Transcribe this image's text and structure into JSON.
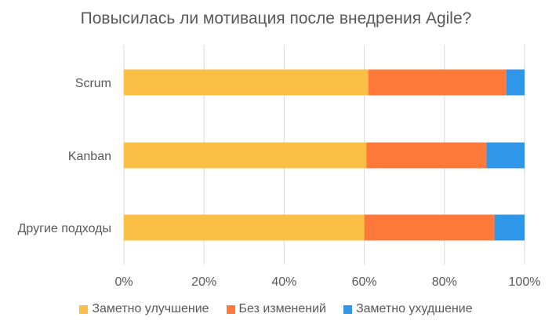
{
  "chart_data": {
    "type": "bar",
    "orientation": "horizontal",
    "stacked": "percent",
    "title": "Повысилась ли мотивация после внедрения Agile?",
    "categories": [
      "Scrum",
      "Kanban",
      "Другие подходы"
    ],
    "series": [
      {
        "name": "Заметно улучшение",
        "color": "#FBBF45",
        "values": [
          61,
          60.5,
          60
        ]
      },
      {
        "name": "Без изменений",
        "color": "#FF7A3A",
        "values": [
          34.5,
          30,
          32.5
        ]
      },
      {
        "name": "Заметно ухудшение",
        "color": "#2F96E8",
        "values": [
          4.5,
          9.5,
          7.5
        ]
      }
    ],
    "xlim": [
      0,
      100
    ],
    "xticks": [
      "0%",
      "20%",
      "40%",
      "60%",
      "80%",
      "100%"
    ],
    "grid": "vertical",
    "legend": "bottom"
  }
}
